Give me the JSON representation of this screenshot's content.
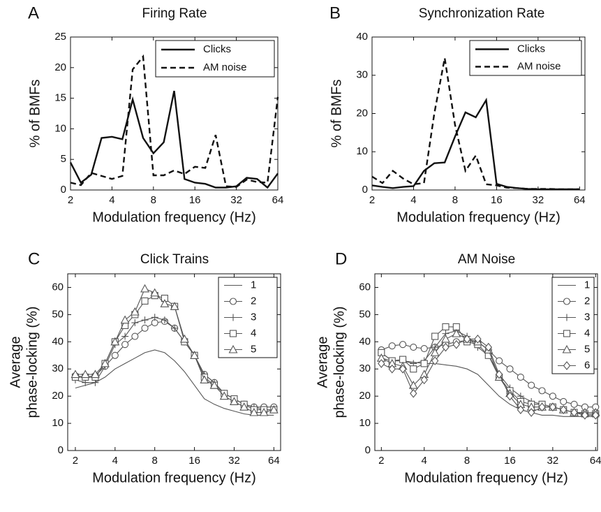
{
  "chart_data": [
    {
      "type": "line",
      "panel": "A",
      "title": "Firing Rate",
      "xlabel": "Modulation frequency (Hz)",
      "ylabel": [
        "% of BMFs"
      ],
      "xlog": true,
      "xlim": [
        2,
        64
      ],
      "xticks": [
        2,
        4,
        8,
        16,
        32,
        64
      ],
      "ylim": [
        0,
        25
      ],
      "yticks": [
        0,
        5,
        10,
        15,
        20,
        25
      ],
      "legend": "upper right",
      "x": [
        2,
        2.38,
        2.83,
        3.36,
        4,
        4.76,
        5.66,
        6.73,
        8,
        9.51,
        11.31,
        13.45,
        16,
        19.03,
        22.63,
        26.91,
        32,
        38.05,
        45.25,
        53.82,
        64
      ],
      "series": [
        {
          "name": "Clicks",
          "color": "#111111",
          "dash": false,
          "marker": "none",
          "values": [
            4.5,
            1.2,
            2.5,
            8.5,
            8.7,
            8.3,
            14.8,
            8.5,
            6,
            7.8,
            16.2,
            1.8,
            1.2,
            1,
            0.4,
            0.4,
            0.6,
            2,
            1.8,
            0.4,
            2.7
          ]
        },
        {
          "name": "AM noise",
          "color": "#111111",
          "dash": true,
          "marker": "none",
          "values": [
            1.2,
            0.8,
            2.8,
            2.3,
            1.8,
            2.3,
            19.7,
            21.8,
            2.4,
            2.4,
            3.2,
            2.6,
            3.8,
            3.6,
            9,
            0.6,
            0.5,
            1.7,
            1.3,
            1.2,
            15.2
          ]
        }
      ]
    },
    {
      "type": "line",
      "panel": "B",
      "title": "Synchronization Rate",
      "xlabel": "Modulation frequency (Hz)",
      "ylabel": [
        "% of BMFs"
      ],
      "xlog": true,
      "xlim": [
        2,
        70
      ],
      "xticks": [
        2,
        4,
        8,
        16,
        32,
        64
      ],
      "ylim": [
        0,
        40
      ],
      "yticks": [
        0,
        10,
        20,
        30,
        40
      ],
      "legend": "upper right",
      "x": [
        2,
        2.38,
        2.83,
        3.36,
        4,
        4.76,
        5.66,
        6.73,
        8,
        9.51,
        11.31,
        13.45,
        16,
        19.03,
        22.63,
        26.91,
        32,
        38.05,
        45.25,
        53.82,
        64
      ],
      "series": [
        {
          "name": "Clicks",
          "color": "#111111",
          "dash": false,
          "marker": "none",
          "values": [
            1.2,
            0.8,
            0.5,
            0.8,
            1,
            5,
            7,
            7.2,
            14,
            20.3,
            19,
            23.5,
            1.6,
            0.8,
            0.5,
            0.3,
            0.2,
            0.2,
            0.2,
            0.2,
            0.2
          ]
        },
        {
          "name": "AM noise",
          "color": "#111111",
          "dash": true,
          "marker": "none",
          "values": [
            3.5,
            1.8,
            5,
            3,
            1.5,
            1.8,
            20,
            34.5,
            17,
            5,
            9,
            1.5,
            1.2,
            0.6,
            0.5,
            0.3,
            0.3,
            0.3,
            0.2,
            0.2,
            0.2
          ]
        }
      ]
    },
    {
      "type": "line",
      "panel": "C",
      "title": "Click Trains",
      "xlabel": "Modulation frequency (Hz)",
      "ylabel": [
        "Average",
        "phase-locking (%)"
      ],
      "xlog": true,
      "xlim": [
        1.75,
        72
      ],
      "xticks": [
        2,
        4,
        8,
        16,
        32,
        64
      ],
      "ylim": [
        0,
        65
      ],
      "yticks": [
        0,
        10,
        20,
        30,
        40,
        50,
        60
      ],
      "legend": "upper right",
      "x": [
        2,
        2.38,
        2.83,
        3.36,
        4,
        4.76,
        5.66,
        6.73,
        8,
        9.51,
        11.31,
        13.45,
        16,
        19.03,
        22.63,
        26.91,
        32,
        38.05,
        45.25,
        53.82,
        64
      ],
      "series": [
        {
          "name": "1",
          "color": "#555555",
          "dash": false,
          "marker": "none",
          "values": [
            23,
            24,
            25,
            27,
            30,
            32,
            34,
            36,
            37,
            36,
            33,
            29,
            24,
            19,
            17,
            15.5,
            14.5,
            13.5,
            13,
            13,
            13
          ]
        },
        {
          "name": "2",
          "color": "#555555",
          "dash": false,
          "marker": "circle",
          "values": [
            27.5,
            27,
            27.5,
            31,
            35,
            39,
            42,
            45,
            47,
            47.5,
            45,
            40,
            35,
            28,
            25,
            21,
            19,
            17,
            16,
            16,
            16
          ]
        },
        {
          "name": "3",
          "color": "#555555",
          "dash": false,
          "marker": "plus",
          "values": [
            26,
            25,
            25,
            31,
            39,
            42,
            47,
            48,
            49,
            48,
            45,
            40,
            35,
            28,
            25,
            21,
            19,
            17,
            16,
            15,
            15
          ]
        },
        {
          "name": "4",
          "color": "#555555",
          "dash": false,
          "marker": "square",
          "values": [
            27,
            27,
            27,
            32,
            40,
            46,
            50,
            55,
            57,
            56,
            53,
            40,
            35,
            27,
            24,
            21,
            19,
            17,
            15,
            15,
            15
          ]
        },
        {
          "name": "5",
          "color": "#555555",
          "dash": false,
          "marker": "triangle",
          "values": [
            28,
            28,
            28,
            32,
            40,
            48,
            51,
            59.5,
            58,
            54,
            53,
            41,
            35,
            26,
            24,
            20,
            18,
            16,
            14,
            14,
            15
          ]
        }
      ]
    },
    {
      "type": "line",
      "panel": "D",
      "title": "AM Noise",
      "xlabel": "Modulation frequency (Hz)",
      "ylabel": [
        "Average",
        "phase-locking (%)"
      ],
      "xlog": true,
      "xlim": [
        1.8,
        66
      ],
      "xticks": [
        2,
        4,
        8,
        16,
        32,
        64
      ],
      "ylim": [
        0,
        65
      ],
      "yticks": [
        0,
        10,
        20,
        30,
        40,
        50,
        60
      ],
      "legend": "upper right",
      "x": [
        2,
        2.38,
        2.83,
        3.36,
        4,
        4.76,
        5.66,
        6.73,
        8,
        9.51,
        11.31,
        13.45,
        16,
        19.03,
        22.63,
        26.91,
        32,
        38.05,
        45.25,
        53.82,
        64
      ],
      "series": [
        {
          "name": "1",
          "color": "#555555",
          "dash": false,
          "marker": "none",
          "values": [
            34,
            33,
            33,
            32.5,
            32,
            32,
            31.5,
            31,
            30,
            28,
            24,
            20,
            17,
            15,
            14,
            13,
            13,
            12.5,
            12.5,
            12.5,
            12.5
          ]
        },
        {
          "name": "2",
          "color": "#555555",
          "dash": false,
          "marker": "circle",
          "values": [
            37,
            38.5,
            39,
            38,
            37.5,
            38,
            39,
            40,
            40.5,
            40,
            37,
            33,
            30,
            27,
            24,
            22,
            20,
            18,
            17,
            16,
            16
          ]
        },
        {
          "name": "3",
          "color": "#555555",
          "dash": false,
          "marker": "plus",
          "values": [
            36,
            33,
            33,
            32,
            33,
            38,
            43,
            44,
            42,
            38,
            35,
            28,
            23,
            20,
            18,
            17,
            16,
            15,
            14,
            14,
            14
          ]
        },
        {
          "name": "4",
          "color": "#555555",
          "dash": false,
          "marker": "square",
          "values": [
            36,
            33,
            33.5,
            30,
            32,
            42,
            45.5,
            45.5,
            40,
            39,
            35,
            27,
            22,
            18,
            17,
            17,
            16,
            15,
            14,
            13.5,
            13.5
          ]
        },
        {
          "name": "5",
          "color": "#555555",
          "dash": false,
          "marker": "triangle",
          "values": [
            34,
            32,
            31,
            24,
            28,
            36,
            41,
            43,
            41,
            40,
            37,
            27,
            21,
            17,
            16,
            16,
            16,
            15,
            14,
            14,
            14
          ]
        },
        {
          "name": "6",
          "color": "#555555",
          "dash": false,
          "marker": "diamond",
          "values": [
            32,
            30,
            30,
            21,
            26,
            33,
            38,
            39,
            41,
            41,
            38,
            28,
            20,
            15,
            14,
            16,
            16,
            15,
            14,
            13,
            13
          ]
        }
      ]
    }
  ]
}
